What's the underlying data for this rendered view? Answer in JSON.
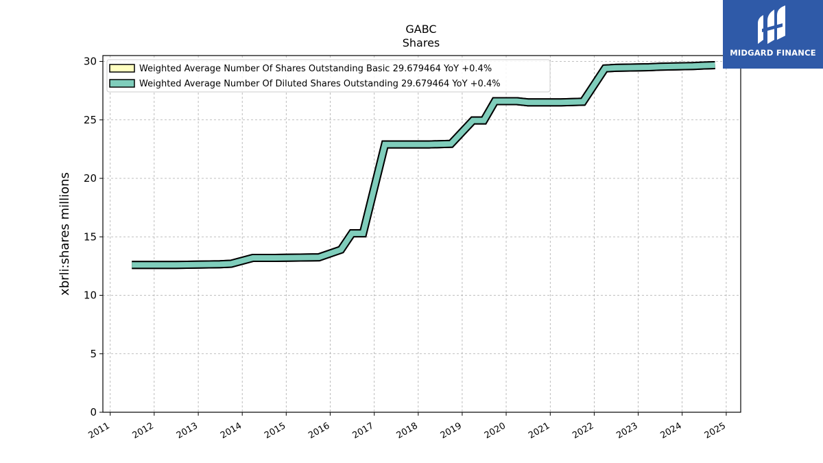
{
  "chart_data": {
    "type": "line",
    "title": "GABC",
    "subtitle": "Shares",
    "xlabel": "",
    "ylabel": "xbrli:shares millions",
    "xlim": [
      "2010-11-01",
      "2025-05-01"
    ],
    "ylim": [
      0,
      30.5
    ],
    "yticks": [
      0,
      5,
      10,
      15,
      20,
      25,
      30
    ],
    "xticks": [
      "2011",
      "2012",
      "2013",
      "2014",
      "2015",
      "2016",
      "2017",
      "2018",
      "2019",
      "2020",
      "2021",
      "2022",
      "2023",
      "2024",
      "2025"
    ],
    "grid": true,
    "legend_position": "top-left",
    "series": [
      {
        "name": "Weighted Average Number Of Shares Outstanding Basic  29.679464 YoY +0.4%",
        "color": "#ffffc0",
        "points": [
          [
            "2011-06-30",
            12.6
          ],
          [
            "2012-06-30",
            12.6
          ],
          [
            "2013-06-30",
            12.65
          ],
          [
            "2013-09-30",
            12.7
          ],
          [
            "2014-03-31",
            13.2
          ],
          [
            "2014-09-30",
            13.2
          ],
          [
            "2015-09-30",
            13.25
          ],
          [
            "2016-03-31",
            13.9
          ],
          [
            "2016-06-30",
            15.3
          ],
          [
            "2016-09-30",
            15.3
          ],
          [
            "2017-03-31",
            22.9
          ],
          [
            "2018-03-31",
            22.9
          ],
          [
            "2018-09-30",
            22.95
          ],
          [
            "2019-03-31",
            24.95
          ],
          [
            "2019-06-30",
            24.95
          ],
          [
            "2019-09-30",
            26.6
          ],
          [
            "2020-03-31",
            26.6
          ],
          [
            "2020-06-30",
            26.5
          ],
          [
            "2021-03-31",
            26.5
          ],
          [
            "2021-09-30",
            26.55
          ],
          [
            "2022-03-31",
            29.4
          ],
          [
            "2022-06-30",
            29.45
          ],
          [
            "2023-03-31",
            29.5
          ],
          [
            "2023-06-30",
            29.55
          ],
          [
            "2024-03-31",
            29.6
          ],
          [
            "2024-06-30",
            29.65
          ],
          [
            "2024-09-30",
            29.68
          ]
        ]
      },
      {
        "name": "Weighted Average Number Of Diluted Shares Outstanding  29.679464 YoY +0.4%",
        "color": "#7fcdbb",
        "points": [
          [
            "2011-06-30",
            12.6
          ],
          [
            "2012-06-30",
            12.6
          ],
          [
            "2013-06-30",
            12.65
          ],
          [
            "2013-09-30",
            12.7
          ],
          [
            "2014-03-31",
            13.2
          ],
          [
            "2014-09-30",
            13.2
          ],
          [
            "2015-09-30",
            13.25
          ],
          [
            "2016-03-31",
            13.9
          ],
          [
            "2016-06-30",
            15.3
          ],
          [
            "2016-09-30",
            15.3
          ],
          [
            "2017-03-31",
            22.9
          ],
          [
            "2018-03-31",
            22.9
          ],
          [
            "2018-09-30",
            22.95
          ],
          [
            "2019-03-31",
            24.95
          ],
          [
            "2019-06-30",
            24.95
          ],
          [
            "2019-09-30",
            26.6
          ],
          [
            "2020-03-31",
            26.6
          ],
          [
            "2020-06-30",
            26.5
          ],
          [
            "2021-03-31",
            26.5
          ],
          [
            "2021-09-30",
            26.55
          ],
          [
            "2022-03-31",
            29.4
          ],
          [
            "2022-06-30",
            29.45
          ],
          [
            "2023-03-31",
            29.5
          ],
          [
            "2023-06-30",
            29.55
          ],
          [
            "2024-03-31",
            29.6
          ],
          [
            "2024-06-30",
            29.65
          ],
          [
            "2024-09-30",
            29.68
          ]
        ]
      }
    ]
  },
  "logo": {
    "text": "MIDGARD FINANCE",
    "icon": "midgard-logo-icon",
    "background": "#2f5aa8"
  }
}
